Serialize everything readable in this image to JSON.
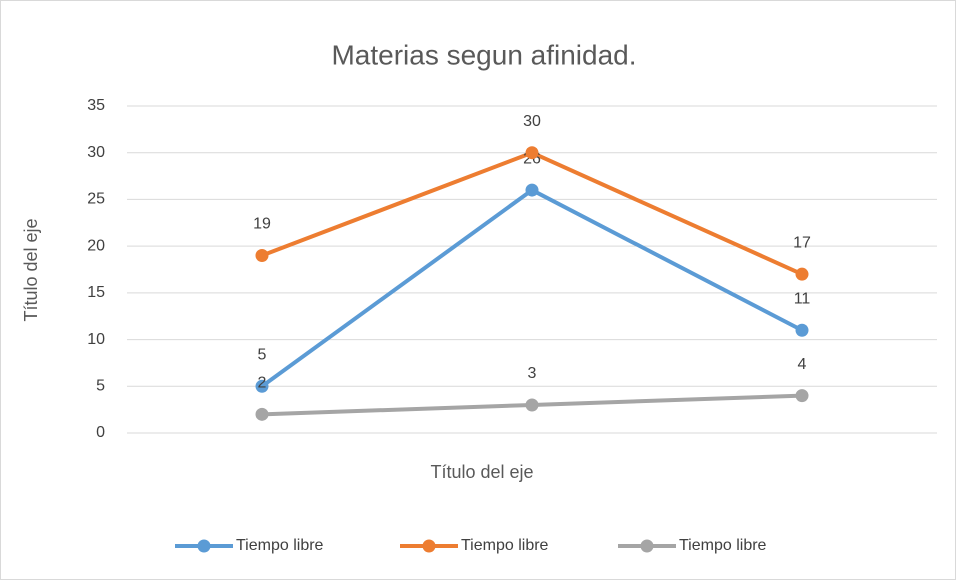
{
  "chart_data": {
    "type": "line",
    "title": "Materias segun afinidad.",
    "x_label": "Título del eje",
    "y_label": "Título del eje",
    "categories": [
      null,
      null,
      null
    ],
    "series": [
      {
        "name": "Tiempo libre",
        "color": "#5b9bd5",
        "values": [
          5,
          26,
          11
        ]
      },
      {
        "name": "Tiempo libre",
        "color": "#ed7d31",
        "values": [
          19,
          30,
          17
        ]
      },
      {
        "name": "Tiempo libre",
        "color": "#a5a5a5",
        "values": [
          2,
          3,
          4
        ]
      }
    ],
    "ylim": [
      0,
      35
    ],
    "yticks": [
      0,
      5,
      10,
      15,
      20,
      25,
      30,
      35
    ],
    "grid": true,
    "legend": "bottom"
  }
}
